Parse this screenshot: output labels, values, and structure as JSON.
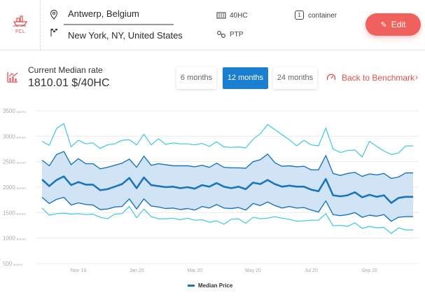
{
  "header": {
    "mode_label": "FCL",
    "origin": "Antwerp, Belgium",
    "destination": "New York, NY, United States",
    "container_size": "40HC",
    "container_label": "container",
    "container_count": "1",
    "service": "PTP",
    "edit_label": "Edit"
  },
  "summary": {
    "title": "Current Median rate",
    "value": "1810.01 $/40HC"
  },
  "periods": [
    {
      "label": "6 months",
      "active": false
    },
    {
      "label": "12 months",
      "active": true
    },
    {
      "label": "24 months",
      "active": false
    }
  ],
  "benchmark_label": "Back to Benchmark",
  "colors": {
    "accent": "#f0605d",
    "active_button": "#1a7fd0",
    "median": "#1c75bc",
    "band_fill": "#c9dff4",
    "outer_lines": "#3cc7e6"
  },
  "legend": {
    "label": "Median Price"
  },
  "chart_data": {
    "type": "line",
    "ylim": [
      500,
      3500
    ],
    "yticks": [
      500,
      1000,
      1500,
      2000,
      2500,
      3000,
      3500
    ],
    "y_unit": "$/40HC",
    "x_tick_labels": [
      "Nov 19",
      "Jan 20",
      "Mar 20",
      "May 20",
      "Jul 20",
      "Sep 20"
    ],
    "x_tick_index": [
      5,
      13,
      21,
      29,
      37,
      45
    ],
    "grid": true,
    "legend_position": "bottom",
    "series": [
      {
        "name": "Median Price",
        "role": "median",
        "values": [
          2150,
          2020,
          2140,
          2210,
          2040,
          2100,
          2050,
          2050,
          1940,
          1960,
          2010,
          2060,
          2180,
          1980,
          2190,
          2040,
          2020,
          2000,
          2010,
          1980,
          2000,
          1970,
          2040,
          2010,
          2080,
          2010,
          1980,
          2010,
          1960,
          2090,
          2060,
          2140,
          2060,
          2010,
          2030,
          2010,
          2010,
          1950,
          1920,
          2160,
          1840,
          1820,
          1840,
          1900,
          1800,
          1850,
          1810,
          1840,
          1690,
          1790,
          1810,
          1810
        ]
      },
      {
        "values": [
          2530,
          2420,
          2640,
          2700,
          2440,
          2560,
          2460,
          2460,
          2360,
          2390,
          2430,
          2470,
          2550,
          2390,
          2610,
          2430,
          2460,
          2440,
          2420,
          2420,
          2420,
          2400,
          2430,
          2390,
          2470,
          2390,
          2380,
          2380,
          2370,
          2500,
          2540,
          2650,
          2480,
          2410,
          2420,
          2400,
          2410,
          2340,
          2340,
          2620,
          2270,
          2230,
          2270,
          2290,
          2210,
          2260,
          2240,
          2270,
          2170,
          2200,
          2280,
          2280
        ]
      },
      {
        "values": [
          1800,
          1680,
          1760,
          1800,
          1650,
          1690,
          1660,
          1650,
          1560,
          1570,
          1610,
          1620,
          1770,
          1570,
          1770,
          1630,
          1610,
          1580,
          1590,
          1560,
          1580,
          1550,
          1620,
          1590,
          1660,
          1590,
          1580,
          1600,
          1550,
          1680,
          1640,
          1710,
          1640,
          1590,
          1620,
          1590,
          1600,
          1550,
          1510,
          1730,
          1460,
          1440,
          1460,
          1500,
          1410,
          1450,
          1430,
          1460,
          1330,
          1410,
          1420,
          1420
        ]
      },
      {
        "values": [
          2900,
          2820,
          3150,
          3250,
          2790,
          2920,
          2850,
          2870,
          2760,
          2830,
          2850,
          2920,
          2930,
          2830,
          3040,
          2830,
          2950,
          2840,
          2870,
          2850,
          2850,
          2830,
          2860,
          2800,
          2890,
          2790,
          2780,
          2790,
          2770,
          2940,
          3050,
          3230,
          3130,
          3030,
          2930,
          2810,
          2920,
          2830,
          2810,
          3160,
          2750,
          2680,
          2720,
          2730,
          2590,
          2900,
          2800,
          2710,
          2640,
          2670,
          2810,
          2810
        ]
      },
      {
        "values": [
          1590,
          1450,
          1480,
          1490,
          1470,
          1480,
          1460,
          1470,
          1410,
          1380,
          1470,
          1480,
          1620,
          1400,
          1570,
          1420,
          1380,
          1380,
          1390,
          1360,
          1390,
          1350,
          1360,
          1310,
          1340,
          1270,
          1370,
          1380,
          1290,
          1410,
          1380,
          1390,
          1420,
          1390,
          1370,
          1330,
          1340,
          1350,
          1350,
          1480,
          1240,
          1250,
          1230,
          1300,
          1190,
          1230,
          1200,
          1210,
          1090,
          1200,
          1160,
          1160
        ]
      }
    ]
  }
}
